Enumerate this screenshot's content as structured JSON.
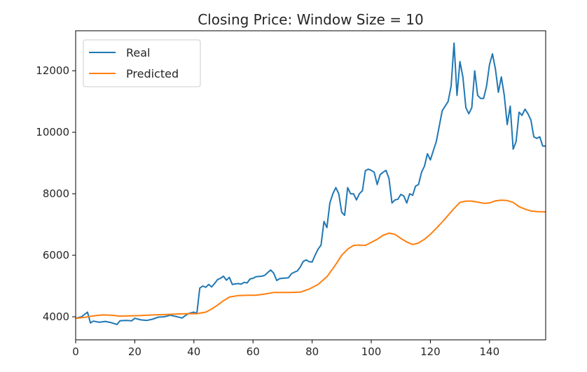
{
  "chart_data": {
    "type": "line",
    "title": "Closing Price: Window Size = 10",
    "xlabel": "",
    "ylabel": "",
    "xlim": [
      0,
      159
    ],
    "ylim": [
      3250,
      13300
    ],
    "x_ticks": [
      0,
      20,
      40,
      60,
      80,
      100,
      120,
      140
    ],
    "y_ticks": [
      4000,
      6000,
      8000,
      10000,
      12000
    ],
    "grid": false,
    "legend_position": "upper-left",
    "series": [
      {
        "name": "Real",
        "color": "#1f77b4",
        "points": [
          [
            0,
            3950
          ],
          [
            2,
            4000
          ],
          [
            4,
            4150
          ],
          [
            5,
            3800
          ],
          [
            6,
            3860
          ],
          [
            8,
            3820
          ],
          [
            10,
            3850
          ],
          [
            12,
            3810
          ],
          [
            14,
            3750
          ],
          [
            15,
            3870
          ],
          [
            17,
            3880
          ],
          [
            19,
            3870
          ],
          [
            20,
            3950
          ],
          [
            22,
            3900
          ],
          [
            24,
            3880
          ],
          [
            26,
            3920
          ],
          [
            28,
            3990
          ],
          [
            30,
            4000
          ],
          [
            32,
            4050
          ],
          [
            34,
            4010
          ],
          [
            36,
            3960
          ],
          [
            38,
            4100
          ],
          [
            40,
            4150
          ],
          [
            41,
            4110
          ],
          [
            42,
            4930
          ],
          [
            43,
            5000
          ],
          [
            44,
            4960
          ],
          [
            45,
            5050
          ],
          [
            46,
            4970
          ],
          [
            47,
            5080
          ],
          [
            48,
            5210
          ],
          [
            49,
            5250
          ],
          [
            50,
            5320
          ],
          [
            51,
            5190
          ],
          [
            52,
            5280
          ],
          [
            53,
            5050
          ],
          [
            55,
            5080
          ],
          [
            56,
            5060
          ],
          [
            57,
            5120
          ],
          [
            58,
            5100
          ],
          [
            59,
            5230
          ],
          [
            60,
            5250
          ],
          [
            61,
            5300
          ],
          [
            62,
            5310
          ],
          [
            63,
            5320
          ],
          [
            64,
            5350
          ],
          [
            65,
            5440
          ],
          [
            66,
            5520
          ],
          [
            67,
            5420
          ],
          [
            68,
            5180
          ],
          [
            69,
            5240
          ],
          [
            70,
            5250
          ],
          [
            72,
            5270
          ],
          [
            73,
            5400
          ],
          [
            74,
            5450
          ],
          [
            75,
            5490
          ],
          [
            76,
            5620
          ],
          [
            77,
            5800
          ],
          [
            78,
            5850
          ],
          [
            79,
            5790
          ],
          [
            80,
            5780
          ],
          [
            81,
            6000
          ],
          [
            82,
            6200
          ],
          [
            83,
            6330
          ],
          [
            84,
            7100
          ],
          [
            85,
            6900
          ],
          [
            86,
            7700
          ],
          [
            87,
            8000
          ],
          [
            88,
            8200
          ],
          [
            89,
            8000
          ],
          [
            90,
            7400
          ],
          [
            91,
            7300
          ],
          [
            92,
            8200
          ],
          [
            93,
            8000
          ],
          [
            94,
            8000
          ],
          [
            95,
            7800
          ],
          [
            96,
            8000
          ],
          [
            97,
            8100
          ],
          [
            98,
            8750
          ],
          [
            99,
            8800
          ],
          [
            100,
            8760
          ],
          [
            101,
            8700
          ],
          [
            102,
            8300
          ],
          [
            103,
            8620
          ],
          [
            104,
            8700
          ],
          [
            105,
            8760
          ],
          [
            106,
            8500
          ],
          [
            107,
            7700
          ],
          [
            108,
            7800
          ],
          [
            109,
            7820
          ],
          [
            110,
            7980
          ],
          [
            111,
            7930
          ],
          [
            112,
            7700
          ],
          [
            113,
            8000
          ],
          [
            114,
            7950
          ],
          [
            115,
            8250
          ],
          [
            116,
            8300
          ],
          [
            117,
            8700
          ],
          [
            118,
            8900
          ],
          [
            119,
            9300
          ],
          [
            120,
            9100
          ],
          [
            121,
            9400
          ],
          [
            122,
            9700
          ],
          [
            123,
            10200
          ],
          [
            124,
            10700
          ],
          [
            125,
            10850
          ],
          [
            126,
            11000
          ],
          [
            127,
            11500
          ],
          [
            128,
            12900
          ],
          [
            129,
            11200
          ],
          [
            130,
            12300
          ],
          [
            131,
            11800
          ],
          [
            132,
            10800
          ],
          [
            133,
            10600
          ],
          [
            134,
            10800
          ],
          [
            135,
            12000
          ],
          [
            136,
            11200
          ],
          [
            137,
            11100
          ],
          [
            138,
            11100
          ],
          [
            139,
            11500
          ],
          [
            140,
            12200
          ],
          [
            141,
            12550
          ],
          [
            142,
            12050
          ],
          [
            143,
            11300
          ],
          [
            144,
            11800
          ],
          [
            145,
            11200
          ],
          [
            146,
            10250
          ],
          [
            147,
            10850
          ],
          [
            148,
            9450
          ],
          [
            149,
            9700
          ],
          [
            150,
            10650
          ],
          [
            151,
            10550
          ],
          [
            152,
            10750
          ],
          [
            153,
            10600
          ],
          [
            154,
            10400
          ],
          [
            155,
            9850
          ],
          [
            156,
            9800
          ],
          [
            157,
            9850
          ],
          [
            158,
            9550
          ],
          [
            159,
            9550
          ]
        ]
      },
      {
        "name": "Predicted",
        "color": "#ff7f0e",
        "points": [
          [
            0,
            3950
          ],
          [
            3,
            3980
          ],
          [
            6,
            4030
          ],
          [
            9,
            4060
          ],
          [
            12,
            4050
          ],
          [
            15,
            4020
          ],
          [
            18,
            4030
          ],
          [
            22,
            4040
          ],
          [
            26,
            4060
          ],
          [
            30,
            4070
          ],
          [
            34,
            4090
          ],
          [
            38,
            4100
          ],
          [
            41,
            4100
          ],
          [
            44,
            4150
          ],
          [
            46,
            4250
          ],
          [
            48,
            4380
          ],
          [
            50,
            4520
          ],
          [
            52,
            4640
          ],
          [
            55,
            4690
          ],
          [
            58,
            4700
          ],
          [
            61,
            4700
          ],
          [
            64,
            4740
          ],
          [
            67,
            4790
          ],
          [
            70,
            4790
          ],
          [
            73,
            4790
          ],
          [
            76,
            4800
          ],
          [
            79,
            4900
          ],
          [
            82,
            5050
          ],
          [
            85,
            5300
          ],
          [
            88,
            5700
          ],
          [
            90,
            6000
          ],
          [
            92,
            6200
          ],
          [
            94,
            6320
          ],
          [
            96,
            6330
          ],
          [
            98,
            6320
          ],
          [
            100,
            6420
          ],
          [
            102,
            6520
          ],
          [
            104,
            6650
          ],
          [
            106,
            6720
          ],
          [
            108,
            6680
          ],
          [
            110,
            6550
          ],
          [
            112,
            6430
          ],
          [
            114,
            6350
          ],
          [
            116,
            6400
          ],
          [
            118,
            6520
          ],
          [
            120,
            6680
          ],
          [
            122,
            6880
          ],
          [
            124,
            7080
          ],
          [
            126,
            7300
          ],
          [
            128,
            7520
          ],
          [
            130,
            7720
          ],
          [
            132,
            7760
          ],
          [
            134,
            7760
          ],
          [
            136,
            7730
          ],
          [
            138,
            7690
          ],
          [
            140,
            7700
          ],
          [
            142,
            7770
          ],
          [
            144,
            7790
          ],
          [
            146,
            7780
          ],
          [
            148,
            7720
          ],
          [
            150,
            7580
          ],
          [
            152,
            7500
          ],
          [
            154,
            7440
          ],
          [
            156,
            7420
          ],
          [
            159,
            7410
          ]
        ]
      }
    ]
  }
}
